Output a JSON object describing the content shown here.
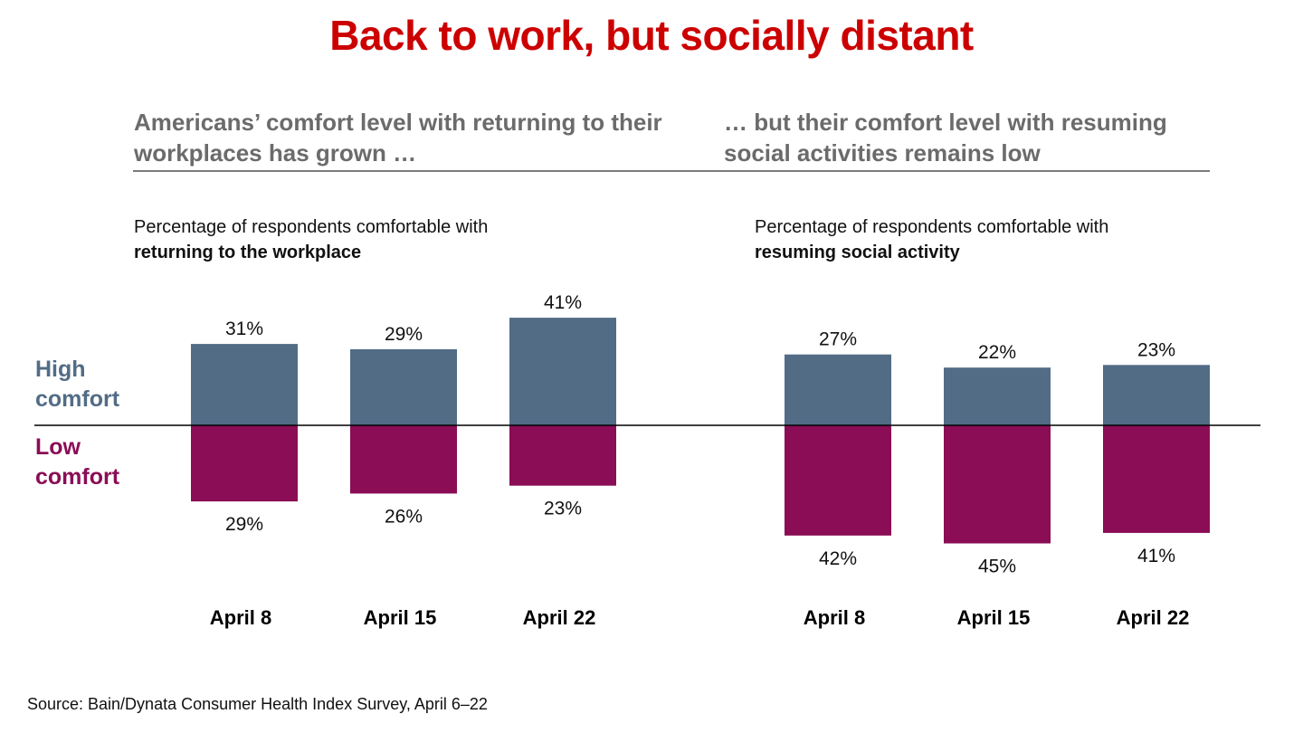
{
  "title": "Back to work, but socially distant",
  "sections": {
    "left_heading": "Americans’ comfort level with returning to their workplaces has grown …",
    "right_heading": "… but their comfort level with resuming social activities remains low"
  },
  "legend": {
    "high": "High comfort",
    "low": "Low comfort",
    "colors": {
      "high": "#526c86",
      "low": "#8a0d56"
    }
  },
  "chart_data": [
    {
      "type": "bar",
      "subtitle_prefix": "Percentage of respondents comfortable with",
      "subtitle_bold": "returning to the workplace",
      "categories": [
        "April 8",
        "April 15",
        "April 22"
      ],
      "series": [
        {
          "name": "High comfort",
          "values": [
            31,
            29,
            41
          ],
          "labels": [
            "31%",
            "29%",
            "41%"
          ]
        },
        {
          "name": "Low comfort",
          "values": [
            29,
            26,
            23
          ],
          "labels": [
            "29%",
            "26%",
            "23%"
          ]
        }
      ],
      "xlabel": "",
      "ylabel": "",
      "unit": "%",
      "layout_note": "diverging: high above baseline, low below"
    },
    {
      "type": "bar",
      "subtitle_prefix": "Percentage of respondents comfortable with",
      "subtitle_bold": "resuming social activity",
      "categories": [
        "April 8",
        "April 15",
        "April 22"
      ],
      "series": [
        {
          "name": "High comfort",
          "values": [
            27,
            22,
            23
          ],
          "labels": [
            "27%",
            "22%",
            "23%"
          ]
        },
        {
          "name": "Low comfort",
          "values": [
            42,
            45,
            41
          ],
          "labels": [
            "42%",
            "45%",
            "41%"
          ]
        }
      ],
      "xlabel": "",
      "ylabel": "",
      "unit": "%",
      "layout_note": "diverging: high above baseline, low below"
    }
  ],
  "source": "Source: Bain/Dynata Consumer Health Index Survey, April 6–22"
}
